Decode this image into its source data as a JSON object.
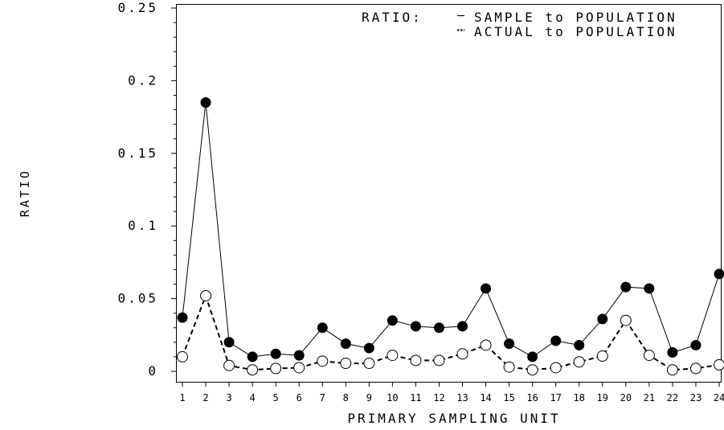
{
  "chart_data": {
    "type": "line",
    "title": "",
    "xlabel": "PRIMARY SAMPLING UNIT",
    "ylabel": "RATIO",
    "ylim": [
      0,
      0.25
    ],
    "xlim": [
      1,
      24
    ],
    "grid": false,
    "legend_title": "RATIO:",
    "legend_placement": "top-right",
    "categories": [
      "1",
      "2",
      "3",
      "4",
      "5",
      "6",
      "7",
      "8",
      "9",
      "10",
      "11",
      "12",
      "13",
      "14",
      "15",
      "16",
      "17",
      "18",
      "19",
      "20",
      "21",
      "22",
      "23",
      "24"
    ],
    "y_ticks": [
      "0",
      "0.05",
      "0.1",
      "0.15",
      "0.2",
      "0.25"
    ],
    "series": [
      {
        "name": "SAMPLE to POPULATION",
        "line_style": "solid",
        "marker": "filled-circle",
        "values": [
          0.037,
          0.185,
          0.02,
          0.01,
          0.012,
          0.011,
          0.03,
          0.019,
          0.016,
          0.035,
          0.031,
          0.03,
          0.031,
          0.057,
          0.019,
          0.01,
          0.021,
          0.018,
          0.036,
          0.058,
          0.057,
          0.013,
          0.018,
          0.067
        ]
      },
      {
        "name": "ACTUAL to POPULATION",
        "line_style": "dashed",
        "marker": "open-circle",
        "values": [
          0.01,
          0.052,
          0.004,
          0.001,
          0.002,
          0.0025,
          0.007,
          0.0055,
          0.0055,
          0.011,
          0.0075,
          0.0075,
          0.012,
          0.018,
          0.003,
          0.001,
          0.0025,
          0.0065,
          0.0105,
          0.035,
          0.011,
          0.001,
          0.002,
          0.0045
        ]
      }
    ]
  }
}
